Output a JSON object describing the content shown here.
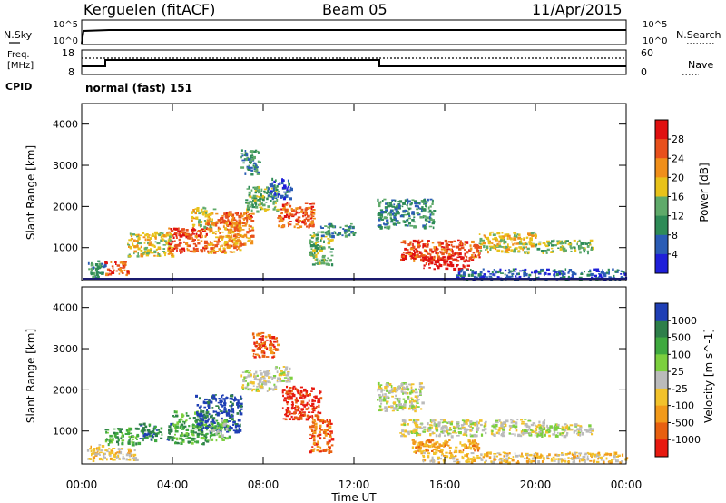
{
  "header": {
    "station": "Kerguelen (fitACF)",
    "beam": "Beam 05",
    "date": "11/Apr/2015"
  },
  "noise_panel": {
    "left_label": "N.Sky",
    "left_ticks": [
      "10^5",
      "10^0"
    ],
    "right_label": "N.Search",
    "right_ticks": [
      "10^5",
      "10^0"
    ]
  },
  "freq_panel": {
    "left_label_1": "Freq.",
    "left_label_2": "[MHz]",
    "left_ticks": [
      "18",
      "8"
    ],
    "right_label": "Nave",
    "right_ticks": [
      "60",
      "0"
    ],
    "cpid_label": "CPID",
    "mode_text": "normal (fast) 151"
  },
  "power_panel": {
    "ylabel": "Slant Range [km]",
    "yticks": [
      "1000",
      "2000",
      "3000",
      "4000"
    ],
    "colorbar_label": "Power [dB]",
    "colorbar_ticks": [
      "4",
      "8",
      "12",
      "16",
      "20",
      "24",
      "28"
    ]
  },
  "velocity_panel": {
    "ylabel": "Slant Range [km]",
    "yticks": [
      "1000",
      "2000",
      "3000",
      "4000"
    ],
    "colorbar_label": "Velocity [m s^-1]",
    "colorbar_ticks": [
      "1000",
      "500",
      "100",
      "25",
      "-25",
      "-100",
      "-500",
      "-1000"
    ]
  },
  "x_axis": {
    "label": "Time UT",
    "ticks": [
      "00:00",
      "04:00",
      "08:00",
      "12:00",
      "16:00",
      "20:00",
      "00:00"
    ]
  },
  "colors": {
    "power_scale": [
      "#1f1fd9",
      "#2a5cb5",
      "#2e8b57",
      "#5faa6a",
      "#e8c21a",
      "#f08f1a",
      "#e8501c",
      "#e01010"
    ],
    "velocity_scale": [
      "#1f3fb5",
      "#2e7f4a",
      "#3fa93f",
      "#7ccf3e",
      "#bbbbbb",
      "#f2c22b",
      "#f29a1a",
      "#e86010",
      "#e81a10"
    ]
  },
  "chart_data": [
    {
      "type": "heatmap",
      "title": "Power",
      "x": "Time UT (hours 0-24)",
      "ylim": [
        200,
        4500
      ],
      "xlim": [
        0,
        24
      ],
      "blobs": [
        {
          "t": [
            0.2,
            1.0
          ],
          "r": [
            280,
            700
          ],
          "level": 2
        },
        {
          "t": [
            1.0,
            2.0
          ],
          "r": [
            350,
            700
          ],
          "level": 6
        },
        {
          "t": [
            2.0,
            4.0
          ],
          "r": [
            800,
            1400
          ],
          "level": 4
        },
        {
          "t": [
            3.8,
            5.5
          ],
          "r": [
            900,
            1500
          ],
          "level": 6
        },
        {
          "t": [
            4.8,
            5.8
          ],
          "r": [
            1500,
            2000
          ],
          "level": 4
        },
        {
          "t": [
            5.5,
            7.0
          ],
          "r": [
            900,
            1700
          ],
          "level": 5
        },
        {
          "t": [
            5.8,
            7.5
          ],
          "r": [
            1600,
            1900
          ],
          "level": 6
        },
        {
          "t": [
            6.5,
            7.5
          ],
          "r": [
            1100,
            1600
          ],
          "level": 5
        },
        {
          "t": [
            7.2,
            8.6
          ],
          "r": [
            1900,
            2500
          ],
          "level": 3
        },
        {
          "t": [
            7.0,
            7.8
          ],
          "r": [
            2800,
            3400
          ],
          "level": 2
        },
        {
          "t": [
            8.2,
            9.2
          ],
          "r": [
            2200,
            2700
          ],
          "level": 1
        },
        {
          "t": [
            8.6,
            10.2
          ],
          "r": [
            1500,
            2100
          ],
          "level": 6
        },
        {
          "t": [
            10.0,
            11.0
          ],
          "r": [
            600,
            1400
          ],
          "level": 3
        },
        {
          "t": [
            10.5,
            12.0
          ],
          "r": [
            1300,
            1600
          ],
          "level": 2
        },
        {
          "t": [
            13.0,
            15.5
          ],
          "r": [
            1500,
            2200
          ],
          "level": 2
        },
        {
          "t": [
            14.0,
            17.5
          ],
          "r": [
            700,
            1200
          ],
          "level": 6
        },
        {
          "t": [
            15.0,
            17.0
          ],
          "r": [
            500,
            800
          ],
          "level": 7
        },
        {
          "t": [
            17.5,
            20.0
          ],
          "r": [
            900,
            1400
          ],
          "level": 4
        },
        {
          "t": [
            20.0,
            22.5
          ],
          "r": [
            900,
            1200
          ],
          "level": 3
        },
        {
          "t": [
            16.5,
            24.0
          ],
          "r": [
            250,
            500
          ],
          "level": 1
        }
      ]
    },
    {
      "type": "heatmap",
      "title": "Velocity",
      "x": "Time UT (hours 0-24)",
      "ylim": [
        200,
        4500
      ],
      "xlim": [
        0,
        24
      ],
      "blobs": [
        {
          "t": [
            0.2,
            1.0
          ],
          "r": [
            300,
            700
          ],
          "level": 5
        },
        {
          "t": [
            1.0,
            2.5
          ],
          "r": [
            300,
            600
          ],
          "level": 5
        },
        {
          "t": [
            1.0,
            2.5
          ],
          "r": [
            700,
            1100
          ],
          "level": 2
        },
        {
          "t": [
            2.5,
            4.0
          ],
          "r": [
            800,
            1200
          ],
          "level": 1
        },
        {
          "t": [
            4.0,
            5.5
          ],
          "r": [
            700,
            1500
          ],
          "level": 2
        },
        {
          "t": [
            5.0,
            7.0
          ],
          "r": [
            1000,
            1900
          ],
          "level": 0
        },
        {
          "t": [
            5.5,
            6.5
          ],
          "r": [
            800,
            1300
          ],
          "level": 3
        },
        {
          "t": [
            7.0,
            8.5
          ],
          "r": [
            2000,
            2500
          ],
          "level": 4
        },
        {
          "t": [
            7.5,
            8.6
          ],
          "r": [
            2800,
            3400
          ],
          "level": 7
        },
        {
          "t": [
            8.5,
            9.2
          ],
          "r": [
            2200,
            2600
          ],
          "level": 4
        },
        {
          "t": [
            8.8,
            10.5
          ],
          "r": [
            1300,
            2100
          ],
          "level": 8
        },
        {
          "t": [
            10.0,
            11.0
          ],
          "r": [
            500,
            1300
          ],
          "level": 7
        },
        {
          "t": [
            13.0,
            15.0
          ],
          "r": [
            1500,
            2200
          ],
          "level": 4
        },
        {
          "t": [
            14.0,
            17.8
          ],
          "r": [
            900,
            1300
          ],
          "level": 4
        },
        {
          "t": [
            14.5,
            17.5
          ],
          "r": [
            500,
            800
          ],
          "level": 6
        },
        {
          "t": [
            18.0,
            20.5
          ],
          "r": [
            900,
            1300
          ],
          "level": 4
        },
        {
          "t": [
            20.0,
            22.5
          ],
          "r": [
            900,
            1200
          ],
          "level": 4
        },
        {
          "t": [
            15.0,
            24.0
          ],
          "r": [
            250,
            500
          ],
          "level": 5
        }
      ]
    }
  ]
}
